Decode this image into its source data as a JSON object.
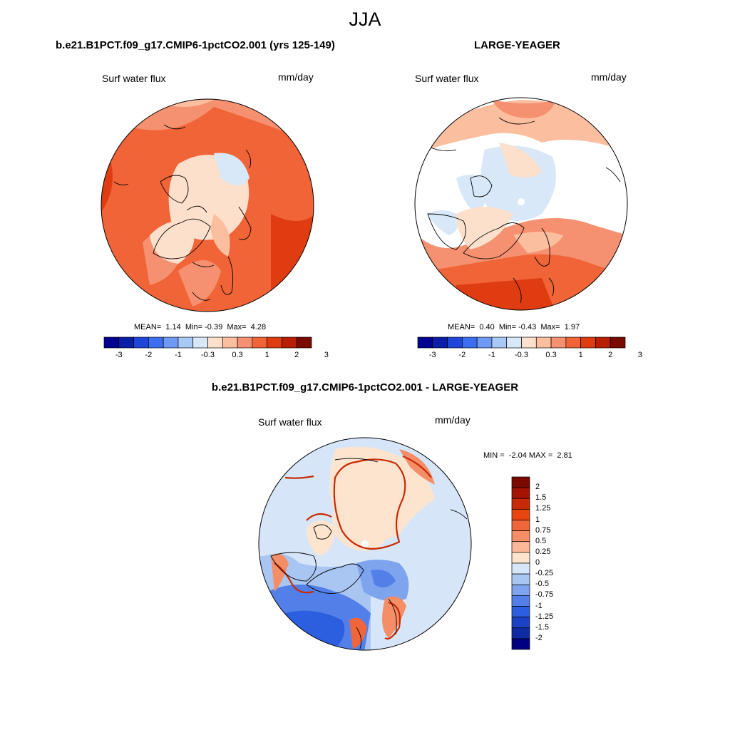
{
  "season": "JJA",
  "panels": [
    {
      "title": "b.e21.B1PCT.f09_g17.CMIP6-1pctCO2.001 (yrs 125-149)",
      "variable": "Surf water flux",
      "units": "mm/day",
      "stats": {
        "mean_label": "MEAN=",
        "mean": "1.14",
        "min_label": "Min=",
        "min": "-0.39",
        "max_label": "Max=",
        "max": "4.28"
      },
      "colorbar_ticks": [
        "-3",
        "-2",
        "-1",
        "-0.3",
        "0.3",
        "1",
        "2",
        "3"
      ]
    },
    {
      "title": "LARGE-YEAGER",
      "variable": "Surf water flux",
      "units": "mm/day",
      "stats": {
        "mean_label": "MEAN=",
        "mean": "0.40",
        "min_label": "Min=",
        "min": "-0.43",
        "max_label": "Max=",
        "max": "1.97"
      },
      "colorbar_ticks": [
        "-3",
        "-2",
        "-1",
        "-0.3",
        "0.3",
        "1",
        "2",
        "3"
      ]
    },
    {
      "title": "b.e21.B1PCT.f09_g17.CMIP6-1pctCO2.001 - LARGE-YEAGER",
      "variable": "Surf water flux",
      "units": "mm/day",
      "stats": {
        "min_label": "MIN =",
        "min": "-2.04",
        "max_label": "MAX =",
        "max": "2.81"
      },
      "colorbar_ticks": [
        "2",
        "1.5",
        "1.25",
        "1",
        "0.75",
        "0.5",
        "0.25",
        "0",
        "-0.25",
        "-0.5",
        "-0.75",
        "-1",
        "-1.25",
        "-1.5",
        "-2"
      ]
    }
  ],
  "colors": {
    "abs_scale": [
      "#000090",
      "#0a1ea8",
      "#1e46d8",
      "#3c6ef0",
      "#6e9af5",
      "#a8c8f5",
      "#d8e8f8",
      "#fde0cc",
      "#fbbfa0",
      "#f59070",
      "#f06437",
      "#e03c12",
      "#b81e04",
      "#7a0a00"
    ],
    "diff_scale": [
      "#7a0a00",
      "#a51402",
      "#c82a05",
      "#e8450f",
      "#f0663a",
      "#f58d66",
      "#fab898",
      "#fde4cf",
      "#d6e6f8",
      "#a9c6f3",
      "#7ea4ee",
      "#5380e8",
      "#2c5fdf",
      "#1b42c4",
      "#0f2aa3",
      "#000080"
    ],
    "coast": "#000000"
  }
}
